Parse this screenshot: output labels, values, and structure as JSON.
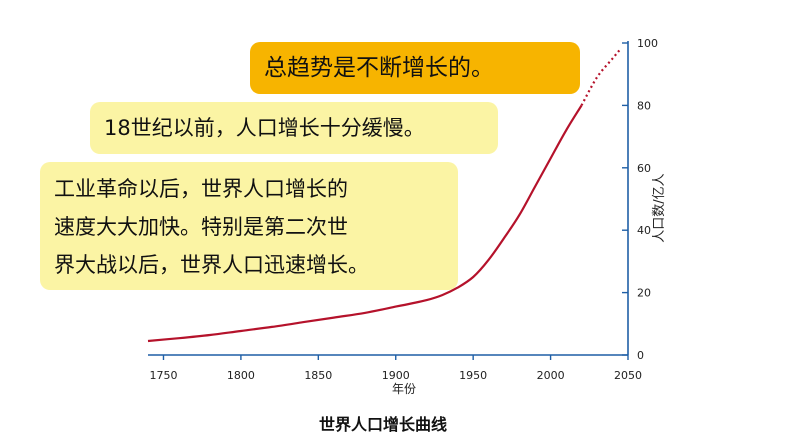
{
  "callouts": {
    "trend": "总趋势是不断增长的。",
    "before_18th": "18世纪以前，人口增长十分缓慢。",
    "industrial": [
      "工业革命以后，世界人口增长的",
      "速度大大加快。特别是第二次世",
      "界大战以后，世界人口迅速增长。"
    ]
  },
  "chart_data": {
    "type": "line",
    "title": "世界人口增长曲线",
    "xlabel": "年份",
    "ylabel": "人口数/亿人",
    "xlim": [
      1740,
      2050
    ],
    "ylim": [
      0,
      100
    ],
    "xticks": [
      1750,
      1800,
      1850,
      1900,
      1950,
      2000,
      2050
    ],
    "yticks": [
      0,
      20,
      40,
      60,
      80,
      100
    ],
    "grid": false,
    "colors": {
      "line": "#b5122b",
      "axis": "#1f5fa6",
      "tick_text": "#222222"
    },
    "series": [
      {
        "x": [
          1740,
          1760,
          1780,
          1800,
          1820,
          1840,
          1860,
          1880,
          1900,
          1910,
          1920,
          1930,
          1940,
          1950,
          1960,
          1970,
          1980,
          1990,
          2000,
          2010,
          2020
        ],
        "y": [
          4.5,
          5.4,
          6.4,
          7.7,
          9.0,
          10.5,
          12.0,
          13.5,
          15.5,
          16.5,
          17.6,
          19.2,
          21.6,
          25,
          30.5,
          37.5,
          45,
          54,
          63,
          72,
          80
        ]
      }
    ],
    "projection": {
      "x": [
        2020,
        2030,
        2040,
        2045
      ],
      "y": [
        80,
        89,
        95,
        98
      ]
    }
  }
}
